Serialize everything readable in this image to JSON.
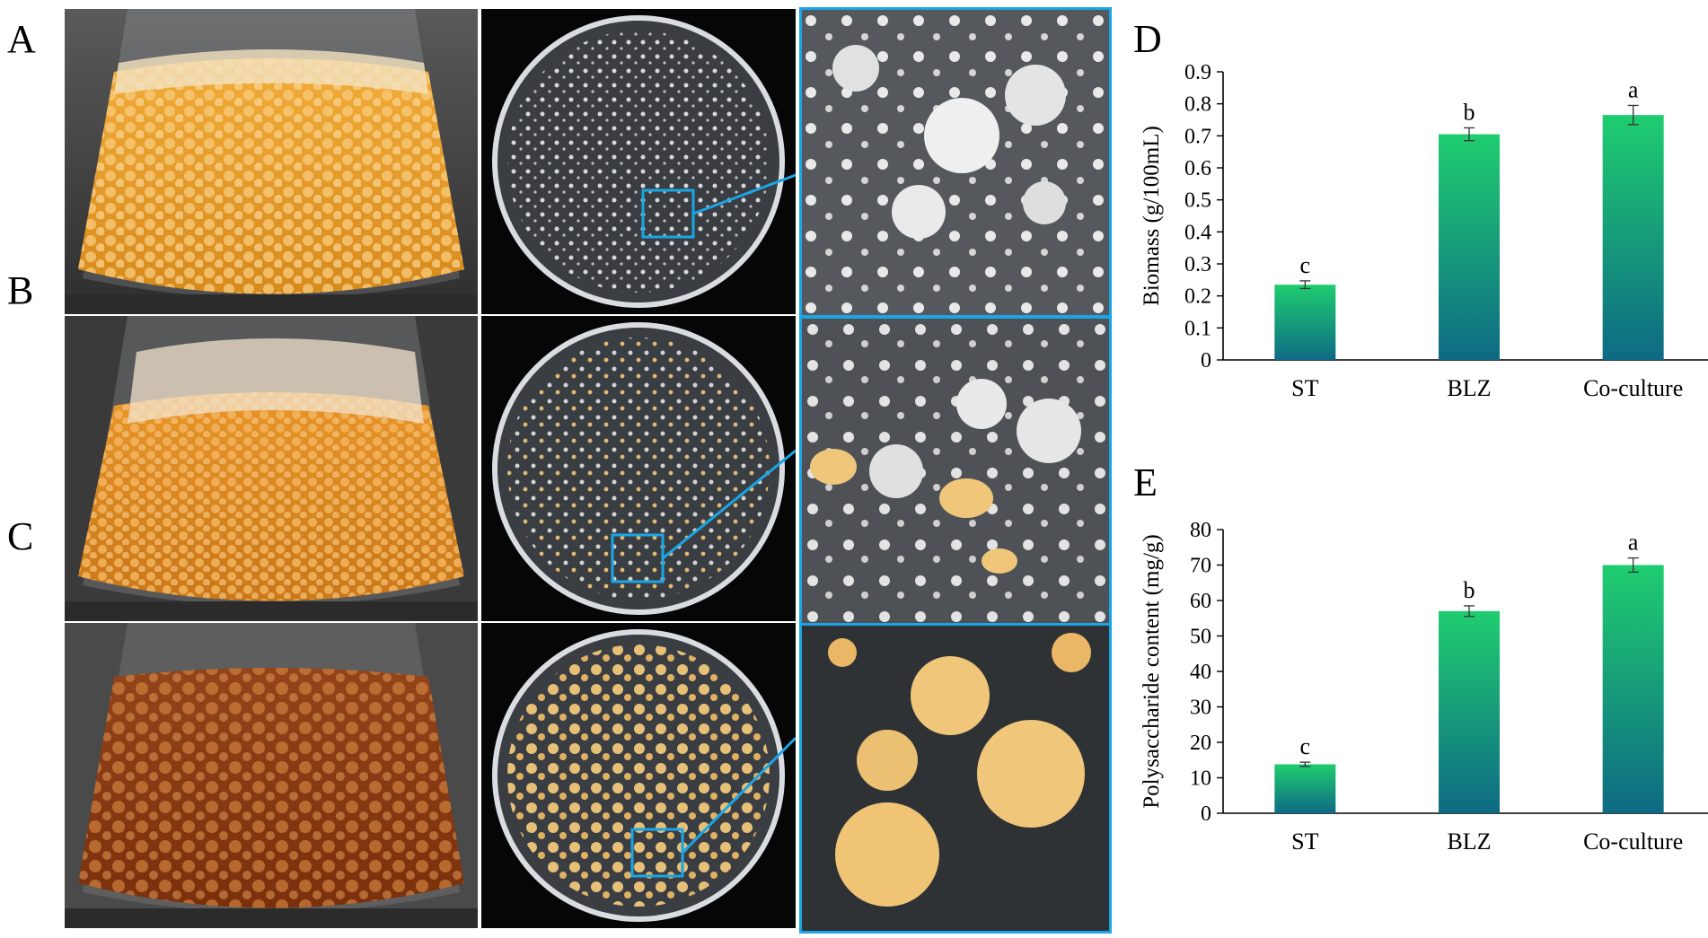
{
  "panel_labels": {
    "A": "A",
    "B": "B",
    "C": "C",
    "D": "D",
    "E": "E"
  },
  "photo_rows": [
    {
      "label": "A",
      "flask_content": "white-pellets",
      "dish": "white-colonies"
    },
    {
      "label": "B",
      "flask_content": "mixed-pellets",
      "dish": "mixed-colonies"
    },
    {
      "label": "C",
      "flask_content": "brown-pellets",
      "dish": "yellow-colonies"
    }
  ],
  "colors": {
    "zoom_border": "#1aa6e6",
    "bar_top": "#1fcd6f",
    "bar_bottom": "#0e6a84",
    "flask_orange": "#e69a2a",
    "flask_brown": "#8a3a12",
    "colony_yellow": "#f0c77a"
  },
  "chart_data": [
    {
      "type": "bar",
      "categories": [
        "ST",
        "BLZ",
        "Co-culture"
      ],
      "values": [
        0.235,
        0.705,
        0.765
      ],
      "errors": [
        0.012,
        0.02,
        0.03
      ],
      "significance": [
        "c",
        "b",
        "a"
      ],
      "ylabel": "Biomass (g/100mL)",
      "ylim": [
        0,
        0.9
      ],
      "yticks": [
        "0",
        "0.1",
        "0.2",
        "0.3",
        "0.4",
        "0.5",
        "0.6",
        "0.7",
        "0.8",
        "0.9"
      ],
      "grid": false,
      "legend": "none"
    },
    {
      "type": "bar",
      "categories": [
        "ST",
        "BLZ",
        "Co-culture"
      ],
      "values": [
        13.8,
        57.0,
        70.0
      ],
      "errors": [
        0.6,
        1.5,
        2.0
      ],
      "significance": [
        "c",
        "b",
        "a"
      ],
      "ylabel": "Polysaccharide content (mg/g)",
      "ylim": [
        0,
        80
      ],
      "yticks": [
        "0",
        "10",
        "20",
        "30",
        "40",
        "50",
        "60",
        "70",
        "80"
      ],
      "grid": false,
      "legend": "none"
    }
  ]
}
